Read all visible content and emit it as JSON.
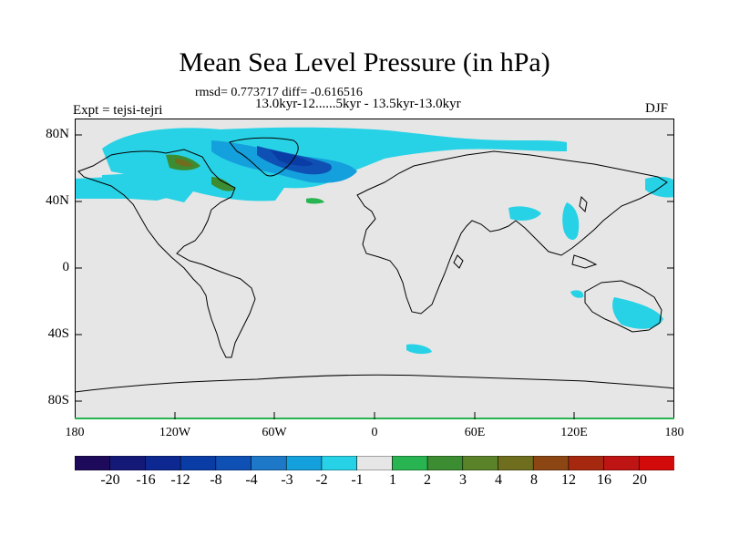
{
  "figure": {
    "title": "Mean Sea Level Pressure (in hPa)",
    "stats": "rmsd= 0.773717 diff= -0.616516",
    "period": "13.0kyr-12......5kyr - 13.5kyr-13.0kyr",
    "experiment": "Expt = tejsi-tejri",
    "season": "DJF"
  },
  "axes": {
    "y_ticks": [
      "80N",
      "40N",
      "0",
      "40S",
      "80S"
    ],
    "x_ticks": [
      "180",
      "120W",
      "60W",
      "0",
      "60E",
      "120E",
      "180"
    ]
  },
  "colorbar": {
    "labels": [
      "-20",
      "-16",
      "-12",
      "-8",
      "-4",
      "-3",
      "-2",
      "-1",
      "1",
      "2",
      "3",
      "4",
      "8",
      "12",
      "16",
      "20"
    ],
    "colors": [
      "#1e0a5a",
      "#141978",
      "#0d2891",
      "#0a3ca5",
      "#0f50b4",
      "#1e78c8",
      "#14a0dc",
      "#28d2e6",
      "#e6e6e6",
      "#28b450",
      "#3c8c32",
      "#5a8228",
      "#6e6e1e",
      "#8c4614",
      "#a5280f",
      "#be1414",
      "#d20a0a"
    ]
  },
  "colors": {
    "land_ocean": "#e6e6e6",
    "coastline": "#000000",
    "frame": "#000000"
  }
}
